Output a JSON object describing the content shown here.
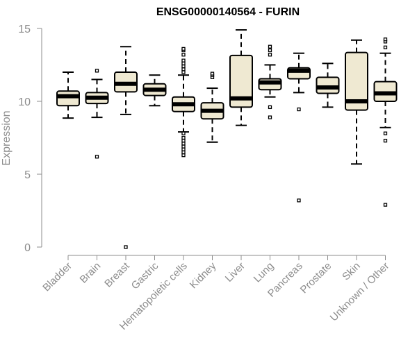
{
  "chart_data": {
    "type": "box",
    "title": "ENSG00000140564 - FURIN",
    "xlabel": "",
    "ylabel": "Expression",
    "ylim": [
      0,
      15
    ],
    "yticks": [
      0,
      5,
      10,
      15
    ],
    "grid": false,
    "colors": {
      "box_fill": "#efe9d2",
      "stroke": "#000000",
      "axis": "#8c8c8c"
    },
    "categories": [
      "Bladder",
      "Brain",
      "Breast",
      "Gastric",
      "Hematopoietic cells",
      "Kidney",
      "Liver",
      "Lung",
      "Pancreas",
      "Prostate",
      "Skin",
      "Unknown / Other"
    ],
    "boxes": [
      {
        "whisker_low": 8.85,
        "q1": 9.7,
        "median": 10.35,
        "q3": 10.7,
        "whisker_high": 12.0,
        "outliers": []
      },
      {
        "whisker_low": 8.9,
        "q1": 9.85,
        "median": 10.25,
        "q3": 10.6,
        "whisker_high": 11.5,
        "outliers": [
          6.2,
          12.1
        ]
      },
      {
        "whisker_low": 9.1,
        "q1": 10.65,
        "median": 11.2,
        "q3": 12.0,
        "whisker_high": 13.75,
        "outliers": [
          0.0
        ]
      },
      {
        "whisker_low": 9.7,
        "q1": 10.4,
        "median": 10.8,
        "q3": 11.2,
        "whisker_high": 11.8,
        "outliers": []
      },
      {
        "whisker_low": 7.9,
        "q1": 9.3,
        "median": 9.8,
        "q3": 10.3,
        "whisker_high": 11.8,
        "outliers": [
          6.3,
          6.5,
          6.7,
          6.9,
          7.1,
          7.3,
          7.5,
          7.8,
          12.0,
          12.2,
          12.4,
          12.6,
          12.8,
          13.2,
          13.5,
          13.6
        ]
      },
      {
        "whisker_low": 7.2,
        "q1": 8.8,
        "median": 9.35,
        "q3": 9.9,
        "whisker_high": 10.9,
        "outliers": [
          11.65,
          11.8,
          11.9
        ]
      },
      {
        "whisker_low": 8.35,
        "q1": 9.6,
        "median": 10.2,
        "q3": 13.15,
        "whisker_high": 14.9,
        "outliers": []
      },
      {
        "whisker_low": 10.3,
        "q1": 10.8,
        "median": 11.3,
        "q3": 11.55,
        "whisker_high": 12.5,
        "outliers": [
          8.9,
          9.6,
          13.2,
          13.5,
          13.75
        ]
      },
      {
        "whisker_low": 10.6,
        "q1": 11.55,
        "median": 12.1,
        "q3": 12.3,
        "whisker_high": 13.3,
        "outliers": [
          3.2,
          9.45
        ]
      },
      {
        "whisker_low": 9.6,
        "q1": 10.55,
        "median": 10.95,
        "q3": 11.65,
        "whisker_high": 12.6,
        "outliers": []
      },
      {
        "whisker_low": 5.7,
        "q1": 9.4,
        "median": 10.0,
        "q3": 13.35,
        "whisker_high": 14.2,
        "outliers": []
      },
      {
        "whisker_low": 8.2,
        "q1": 10.0,
        "median": 10.55,
        "q3": 11.35,
        "whisker_high": 13.3,
        "outliers": [
          2.9,
          7.3,
          7.8,
          13.7,
          14.1,
          14.25
        ]
      }
    ]
  }
}
